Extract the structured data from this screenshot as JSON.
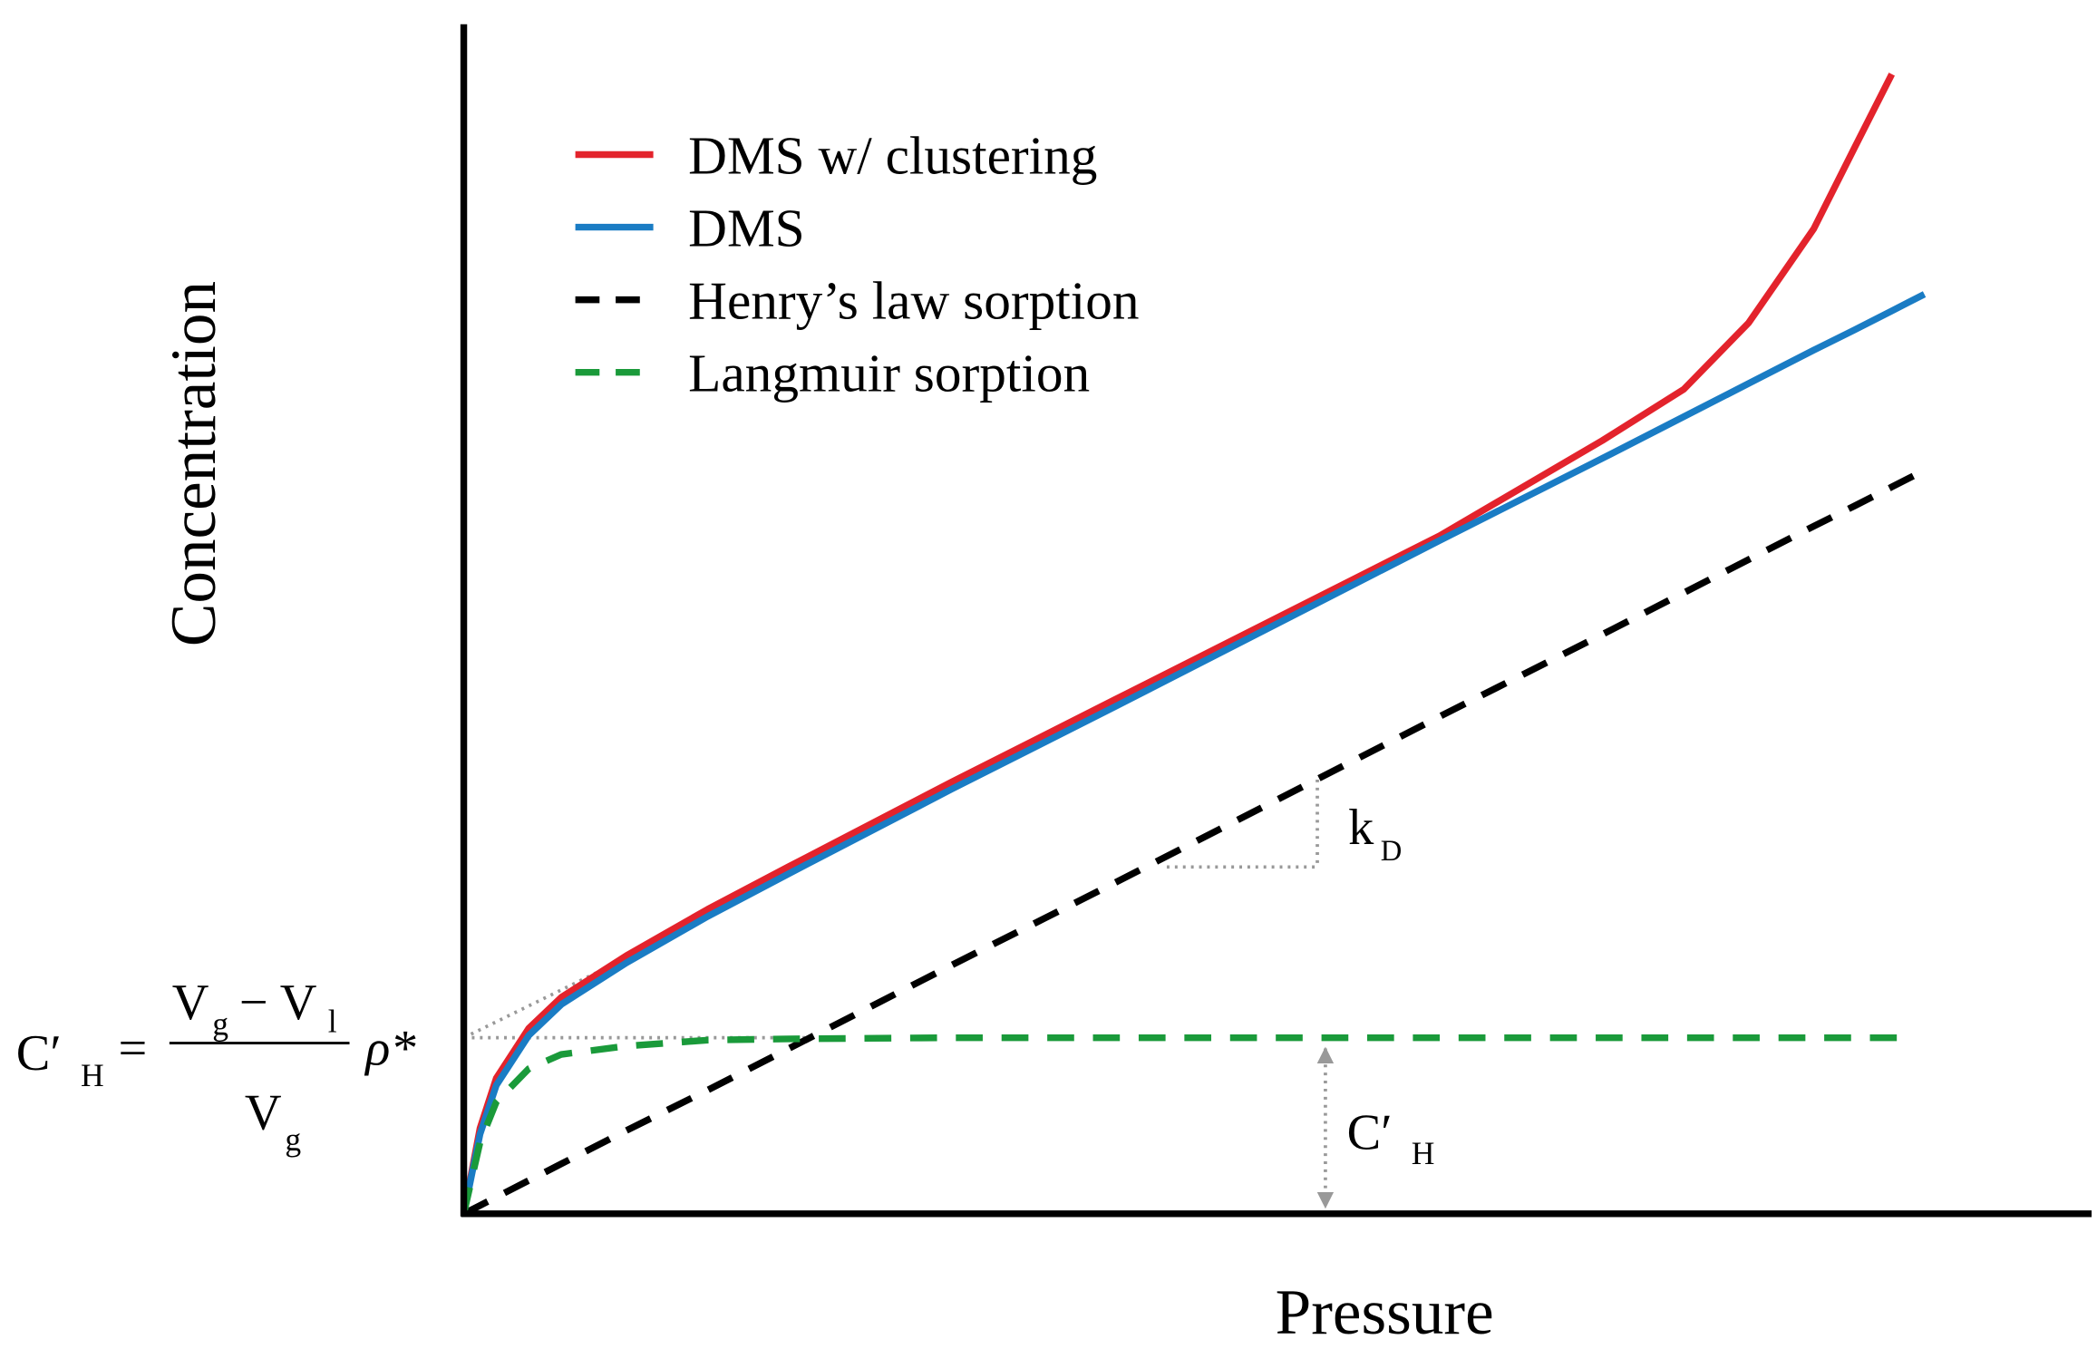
{
  "chart_data": {
    "type": "line",
    "x_label": "Pressure",
    "y_label": "Concentration",
    "xlim": [
      0,
      100
    ],
    "ylim": [
      0,
      100
    ],
    "x": [
      0,
      1,
      2,
      4,
      6,
      10,
      15,
      20,
      30,
      40,
      50,
      60,
      70,
      75,
      79,
      83,
      85.5,
      87.8,
      88.8,
      89.8
    ],
    "series": [
      {
        "name": "DMS w/ clustering",
        "color": "#e3232c",
        "style": "solid",
        "values": [
          0,
          7.2,
          11.4,
          15.6,
          18.2,
          21.7,
          25.6,
          29.2,
          36.3,
          43.2,
          50.1,
          57.0,
          65.0,
          69.3,
          74.9,
          82.8,
          89.6,
          95.8,
          null,
          null
        ]
      },
      {
        "name": "DMS",
        "color": "#1a7cc4",
        "style": "solid",
        "values": [
          0,
          6.7,
          10.8,
          15.0,
          17.6,
          21.1,
          25.0,
          28.6,
          35.7,
          42.6,
          49.6,
          56.6,
          63.5,
          67.0,
          69.8,
          72.6,
          74.3,
          75.9,
          76.6,
          77.3
        ]
      },
      {
        "name": "Henry’s law sorption",
        "color": "#000000",
        "style": "dashed",
        "values": [
          0,
          0.7,
          1.4,
          2.8,
          4.2,
          7.0,
          10.4,
          13.9,
          20.9,
          27.8,
          34.8,
          41.8,
          48.7,
          52.2,
          55.0,
          57.8,
          59.5,
          61.1,
          61.8,
          62.5
        ]
      },
      {
        "name": "Langmuir sorption",
        "color": "#1a9a3a",
        "style": "dashed",
        "values": [
          0,
          6,
          9.4,
          12.2,
          13.4,
          14.1,
          14.6,
          14.7,
          14.8,
          14.8,
          14.8,
          14.8,
          14.8,
          14.8,
          14.8,
          14.8,
          14.8,
          14.8,
          14.8,
          null
        ]
      }
    ],
    "annotations": {
      "slope": {
        "main": "k",
        "sub": "D"
      },
      "capacity": {
        "main": "C′",
        "sub": "H"
      },
      "formula": {
        "lhs": "C′",
        "lhs_sub": "H",
        "equals": "=",
        "num_a": "V",
        "num_a_sub": "g",
        "num_b": "− V",
        "num_b_sub": "l",
        "den": "V",
        "den_sub": "g",
        "factor": "ρ*"
      }
    }
  }
}
